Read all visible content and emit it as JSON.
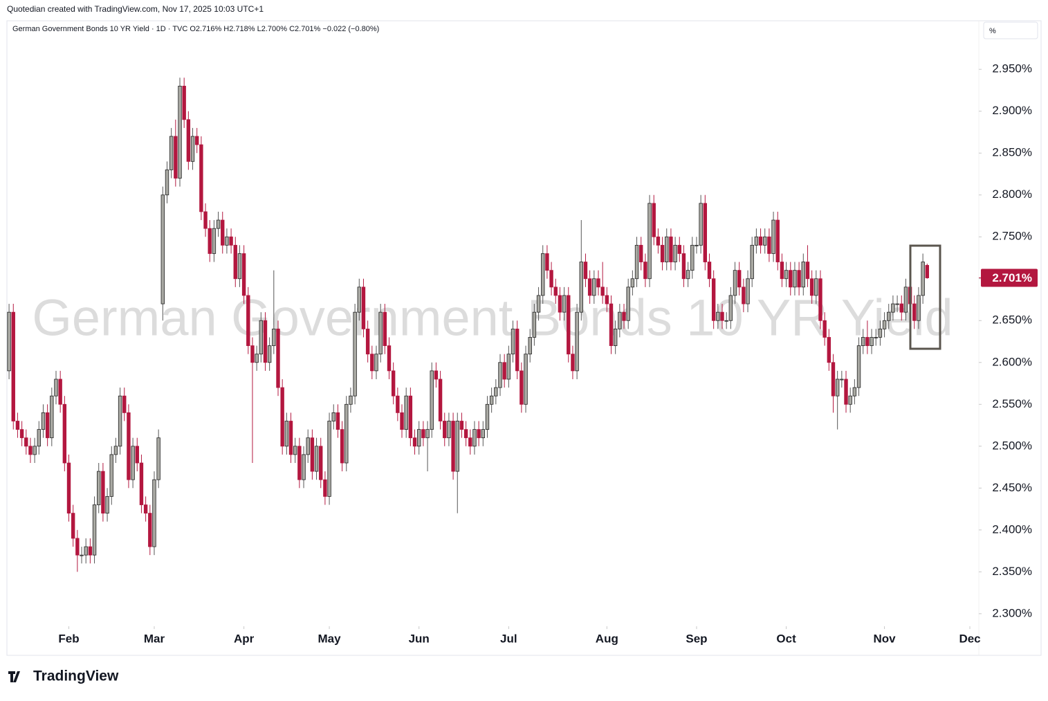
{
  "header": {
    "credit": "Quotedian created with TradingView.com, Nov 17, 2025 10:03 UTC+1",
    "logo": "TradingView"
  },
  "chart_data": {
    "type": "candlestick",
    "legend": "German Government Bonds 10 YR Yield · 1D · TVC  O2.716%  H2.718%  L2.700%  C2.701%  −0.022 (−0.80%)",
    "watermark": "German Government Bonds 10 YR Yield",
    "unit_box": "%",
    "last_price_label": "2.701%",
    "up_color": "#a9a9a3",
    "down_color": "#b3173f",
    "outline_color": "#222222",
    "grid": false,
    "ylim": [
      2.285,
      3.008
    ],
    "yticks": [
      {
        "value": 2.3,
        "label": "2.300%"
      },
      {
        "value": 2.35,
        "label": "2.350%"
      },
      {
        "value": 2.4,
        "label": "2.400%"
      },
      {
        "value": 2.45,
        "label": "2.450%"
      },
      {
        "value": 2.5,
        "label": "2.500%"
      },
      {
        "value": 2.55,
        "label": "2.550%"
      },
      {
        "value": 2.6,
        "label": "2.600%"
      },
      {
        "value": 2.65,
        "label": "2.650%"
      },
      {
        "value": 2.7,
        "label": "2.700%"
      },
      {
        "value": 2.75,
        "label": "2.750%"
      },
      {
        "value": 2.8,
        "label": "2.800%"
      },
      {
        "value": 2.85,
        "label": "2.850%"
      },
      {
        "value": 2.9,
        "label": "2.900%"
      },
      {
        "value": 2.95,
        "label": "2.950%"
      }
    ],
    "xlim": [
      -0.5,
      227.1
    ],
    "xticks": [
      {
        "value": 14,
        "label": "Feb"
      },
      {
        "value": 34,
        "label": "Mar"
      },
      {
        "value": 55,
        "label": "Apr"
      },
      {
        "value": 75,
        "label": "May"
      },
      {
        "value": 96,
        "label": "Jun"
      },
      {
        "value": 117,
        "label": "Jul"
      },
      {
        "value": 140,
        "label": "Aug"
      },
      {
        "value": 161,
        "label": "Sep"
      },
      {
        "value": 182,
        "label": "Oct"
      },
      {
        "value": 205,
        "label": "Nov"
      },
      {
        "value": 225,
        "label": "Dec"
      }
    ],
    "open": [
      2.59,
      2.66,
      2.53,
      2.52,
      2.51,
      2.5,
      2.49,
      2.5,
      2.52,
      2.54,
      2.51,
      2.56,
      2.58,
      2.55,
      2.48,
      2.42,
      2.39,
      2.37,
      2.37,
      2.38,
      2.37,
      2.43,
      2.47,
      2.42,
      2.44,
      2.49,
      2.5,
      2.56,
      2.54,
      2.46,
      2.5,
      2.48,
      2.43,
      2.42,
      2.38,
      2.46,
      2.67,
      2.8,
      2.83,
      2.87,
      2.82,
      2.93,
      2.89,
      2.84,
      2.87,
      2.86,
      2.78,
      2.76,
      2.73,
      2.76,
      2.77,
      2.74,
      2.75,
      2.74,
      2.7,
      2.73,
      2.68,
      2.62,
      2.6,
      2.61,
      2.65,
      2.6,
      2.62,
      2.64,
      2.57,
      2.5,
      2.53,
      2.49,
      2.5,
      2.46,
      2.49,
      2.51,
      2.47,
      2.5,
      2.46,
      2.44,
      2.53,
      2.54,
      2.52,
      2.48,
      2.55,
      2.56,
      2.66,
      2.69,
      2.64,
      2.61,
      2.59,
      2.61,
      2.66,
      2.62,
      2.59,
      2.56,
      2.54,
      2.52,
      2.56,
      2.51,
      2.5,
      2.52,
      2.51,
      2.52,
      2.59,
      2.58,
      2.53,
      2.51,
      2.53,
      2.47,
      2.53,
      2.52,
      2.51,
      2.5,
      2.52,
      2.51,
      2.52,
      2.55,
      2.56,
      2.57,
      2.6,
      2.58,
      2.61,
      2.64,
      2.59,
      2.55,
      2.61,
      2.63,
      2.66,
      2.68,
      2.73,
      2.71,
      2.69,
      2.68,
      2.66,
      2.68,
      2.61,
      2.59,
      2.66,
      2.72,
      2.7,
      2.68,
      2.7,
      2.69,
      2.68,
      2.67,
      2.62,
      2.64,
      2.66,
      2.65,
      2.69,
      2.7,
      2.74,
      2.72,
      2.7,
      2.79,
      2.75,
      2.74,
      2.72,
      2.75,
      2.72,
      2.74,
      2.73,
      2.7,
      2.71,
      2.74,
      2.74,
      2.79,
      2.72,
      2.7,
      2.65,
      2.66,
      2.65,
      2.65,
      2.68,
      2.71,
      2.69,
      2.67,
      2.7,
      2.74,
      2.75,
      2.74,
      2.75,
      2.73,
      2.77,
      2.72,
      2.7,
      2.71,
      2.69,
      2.71,
      2.69,
      2.72,
      2.7,
      2.68,
      2.7,
      2.65,
      2.63,
      2.6,
      2.56,
      2.58,
      2.58,
      2.55,
      2.56,
      2.57,
      2.62,
      2.63,
      2.62,
      2.63,
      2.63,
      2.64,
      2.65,
      2.66,
      2.67,
      2.67,
      2.66,
      2.69,
      2.67,
      2.65,
      2.68,
      2.716
    ],
    "high": [
      2.67,
      2.67,
      2.54,
      2.53,
      2.52,
      2.51,
      2.51,
      2.53,
      2.55,
      2.55,
      2.57,
      2.59,
      2.59,
      2.56,
      2.49,
      2.43,
      2.4,
      2.38,
      2.39,
      2.39,
      2.44,
      2.48,
      2.48,
      2.45,
      2.5,
      2.51,
      2.57,
      2.57,
      2.55,
      2.51,
      2.51,
      2.49,
      2.44,
      2.43,
      2.47,
      2.52,
      2.81,
      2.84,
      2.88,
      2.89,
      2.94,
      2.94,
      2.9,
      2.88,
      2.88,
      2.87,
      2.79,
      2.77,
      2.77,
      2.78,
      2.78,
      2.76,
      2.76,
      2.75,
      2.74,
      2.74,
      2.69,
      2.63,
      2.62,
      2.66,
      2.66,
      2.63,
      2.71,
      2.65,
      2.58,
      2.54,
      2.54,
      2.51,
      2.51,
      2.5,
      2.52,
      2.52,
      2.51,
      2.51,
      2.47,
      2.54,
      2.55,
      2.55,
      2.53,
      2.56,
      2.57,
      2.67,
      2.7,
      2.7,
      2.65,
      2.62,
      2.62,
      2.67,
      2.67,
      2.63,
      2.6,
      2.57,
      2.55,
      2.57,
      2.57,
      2.52,
      2.53,
      2.53,
      2.53,
      2.6,
      2.6,
      2.59,
      2.54,
      2.54,
      2.54,
      2.54,
      2.54,
      2.53,
      2.52,
      2.53,
      2.53,
      2.53,
      2.56,
      2.57,
      2.58,
      2.61,
      2.61,
      2.62,
      2.65,
      2.65,
      2.6,
      2.62,
      2.64,
      2.67,
      2.69,
      2.74,
      2.74,
      2.72,
      2.7,
      2.69,
      2.69,
      2.69,
      2.62,
      2.67,
      2.77,
      2.73,
      2.71,
      2.71,
      2.71,
      2.72,
      2.69,
      2.68,
      2.65,
      2.67,
      2.67,
      2.7,
      2.71,
      2.75,
      2.75,
      2.73,
      2.8,
      2.8,
      2.76,
      2.75,
      2.76,
      2.76,
      2.75,
      2.75,
      2.74,
      2.72,
      2.75,
      2.75,
      2.8,
      2.8,
      2.73,
      2.71,
      2.67,
      2.67,
      2.66,
      2.69,
      2.72,
      2.72,
      2.7,
      2.71,
      2.75,
      2.76,
      2.76,
      2.76,
      2.76,
      2.78,
      2.78,
      2.73,
      2.72,
      2.72,
      2.72,
      2.72,
      2.73,
      2.74,
      2.71,
      2.71,
      2.71,
      2.66,
      2.64,
      2.61,
      2.59,
      2.59,
      2.59,
      2.57,
      2.58,
      2.63,
      2.64,
      2.65,
      2.64,
      2.64,
      2.65,
      2.66,
      2.67,
      2.68,
      2.68,
      2.68,
      2.7,
      2.7,
      2.68,
      2.69,
      2.73,
      2.718
    ],
    "low": [
      2.58,
      2.52,
      2.51,
      2.5,
      2.49,
      2.48,
      2.48,
      2.49,
      2.51,
      2.5,
      2.5,
      2.55,
      2.54,
      2.47,
      2.41,
      2.38,
      2.35,
      2.36,
      2.36,
      2.36,
      2.36,
      2.42,
      2.41,
      2.41,
      2.43,
      2.48,
      2.49,
      2.53,
      2.45,
      2.45,
      2.47,
      2.42,
      2.41,
      2.37,
      2.37,
      2.45,
      2.65,
      2.79,
      2.82,
      2.81,
      2.81,
      2.88,
      2.83,
      2.83,
      2.85,
      2.77,
      2.75,
      2.72,
      2.72,
      2.75,
      2.73,
      2.73,
      2.73,
      2.69,
      2.69,
      2.67,
      2.61,
      2.48,
      2.59,
      2.6,
      2.59,
      2.59,
      2.61,
      2.56,
      2.49,
      2.49,
      2.48,
      2.48,
      2.45,
      2.45,
      2.48,
      2.46,
      2.46,
      2.45,
      2.43,
      2.43,
      2.52,
      2.51,
      2.47,
      2.47,
      2.54,
      2.55,
      2.65,
      2.63,
      2.6,
      2.58,
      2.58,
      2.6,
      2.61,
      2.58,
      2.55,
      2.53,
      2.51,
      2.51,
      2.5,
      2.49,
      2.49,
      2.5,
      2.47,
      2.51,
      2.57,
      2.52,
      2.5,
      2.5,
      2.46,
      2.42,
      2.51,
      2.5,
      2.49,
      2.49,
      2.5,
      2.5,
      2.51,
      2.54,
      2.55,
      2.56,
      2.57,
      2.57,
      2.6,
      2.58,
      2.54,
      2.54,
      2.6,
      2.62,
      2.65,
      2.67,
      2.7,
      2.68,
      2.67,
      2.65,
      2.65,
      2.6,
      2.58,
      2.58,
      2.65,
      2.69,
      2.67,
      2.67,
      2.68,
      2.67,
      2.66,
      2.61,
      2.61,
      2.63,
      2.64,
      2.64,
      2.68,
      2.69,
      2.71,
      2.69,
      2.69,
      2.74,
      2.73,
      2.71,
      2.71,
      2.71,
      2.71,
      2.72,
      2.69,
      2.69,
      2.7,
      2.73,
      2.73,
      2.71,
      2.69,
      2.64,
      2.64,
      2.64,
      2.64,
      2.64,
      2.67,
      2.68,
      2.66,
      2.66,
      2.69,
      2.73,
      2.73,
      2.73,
      2.72,
      2.72,
      2.71,
      2.69,
      2.69,
      2.68,
      2.68,
      2.68,
      2.68,
      2.69,
      2.67,
      2.67,
      2.64,
      2.62,
      2.59,
      2.54,
      2.52,
      2.57,
      2.54,
      2.54,
      2.55,
      2.56,
      2.61,
      2.61,
      2.61,
      2.62,
      2.62,
      2.63,
      2.64,
      2.65,
      2.66,
      2.65,
      2.65,
      2.66,
      2.64,
      2.64,
      2.67,
      2.7
    ],
    "close": [
      2.66,
      2.53,
      2.52,
      2.51,
      2.5,
      2.49,
      2.5,
      2.52,
      2.54,
      2.51,
      2.56,
      2.58,
      2.55,
      2.48,
      2.42,
      2.39,
      2.37,
      2.37,
      2.38,
      2.37,
      2.43,
      2.47,
      2.42,
      2.44,
      2.49,
      2.5,
      2.56,
      2.54,
      2.46,
      2.5,
      2.48,
      2.43,
      2.42,
      2.38,
      2.46,
      2.51,
      2.8,
      2.83,
      2.87,
      2.82,
      2.93,
      2.89,
      2.84,
      2.87,
      2.86,
      2.78,
      2.76,
      2.73,
      2.76,
      2.77,
      2.74,
      2.75,
      2.74,
      2.7,
      2.73,
      2.68,
      2.62,
      2.6,
      2.61,
      2.65,
      2.6,
      2.62,
      2.64,
      2.57,
      2.5,
      2.53,
      2.49,
      2.5,
      2.46,
      2.49,
      2.51,
      2.47,
      2.5,
      2.46,
      2.44,
      2.53,
      2.54,
      2.52,
      2.48,
      2.55,
      2.56,
      2.66,
      2.69,
      2.64,
      2.61,
      2.59,
      2.61,
      2.66,
      2.62,
      2.59,
      2.56,
      2.54,
      2.52,
      2.56,
      2.51,
      2.5,
      2.52,
      2.51,
      2.52,
      2.59,
      2.58,
      2.53,
      2.51,
      2.53,
      2.47,
      2.53,
      2.52,
      2.51,
      2.5,
      2.52,
      2.51,
      2.52,
      2.55,
      2.56,
      2.57,
      2.6,
      2.58,
      2.61,
      2.64,
      2.59,
      2.55,
      2.61,
      2.63,
      2.66,
      2.68,
      2.73,
      2.71,
      2.69,
      2.68,
      2.66,
      2.68,
      2.61,
      2.59,
      2.66,
      2.72,
      2.7,
      2.68,
      2.7,
      2.69,
      2.68,
      2.67,
      2.62,
      2.64,
      2.66,
      2.65,
      2.69,
      2.7,
      2.74,
      2.72,
      2.7,
      2.79,
      2.75,
      2.74,
      2.72,
      2.75,
      2.72,
      2.74,
      2.73,
      2.7,
      2.71,
      2.74,
      2.74,
      2.79,
      2.72,
      2.7,
      2.65,
      2.66,
      2.65,
      2.65,
      2.68,
      2.71,
      2.69,
      2.67,
      2.7,
      2.74,
      2.75,
      2.74,
      2.75,
      2.73,
      2.77,
      2.72,
      2.7,
      2.71,
      2.69,
      2.71,
      2.69,
      2.72,
      2.7,
      2.68,
      2.7,
      2.65,
      2.63,
      2.6,
      2.56,
      2.58,
      2.58,
      2.55,
      2.56,
      2.57,
      2.62,
      2.63,
      2.62,
      2.63,
      2.63,
      2.64,
      2.65,
      2.66,
      2.67,
      2.67,
      2.66,
      2.69,
      2.67,
      2.65,
      2.68,
      2.72,
      2.701
    ]
  }
}
